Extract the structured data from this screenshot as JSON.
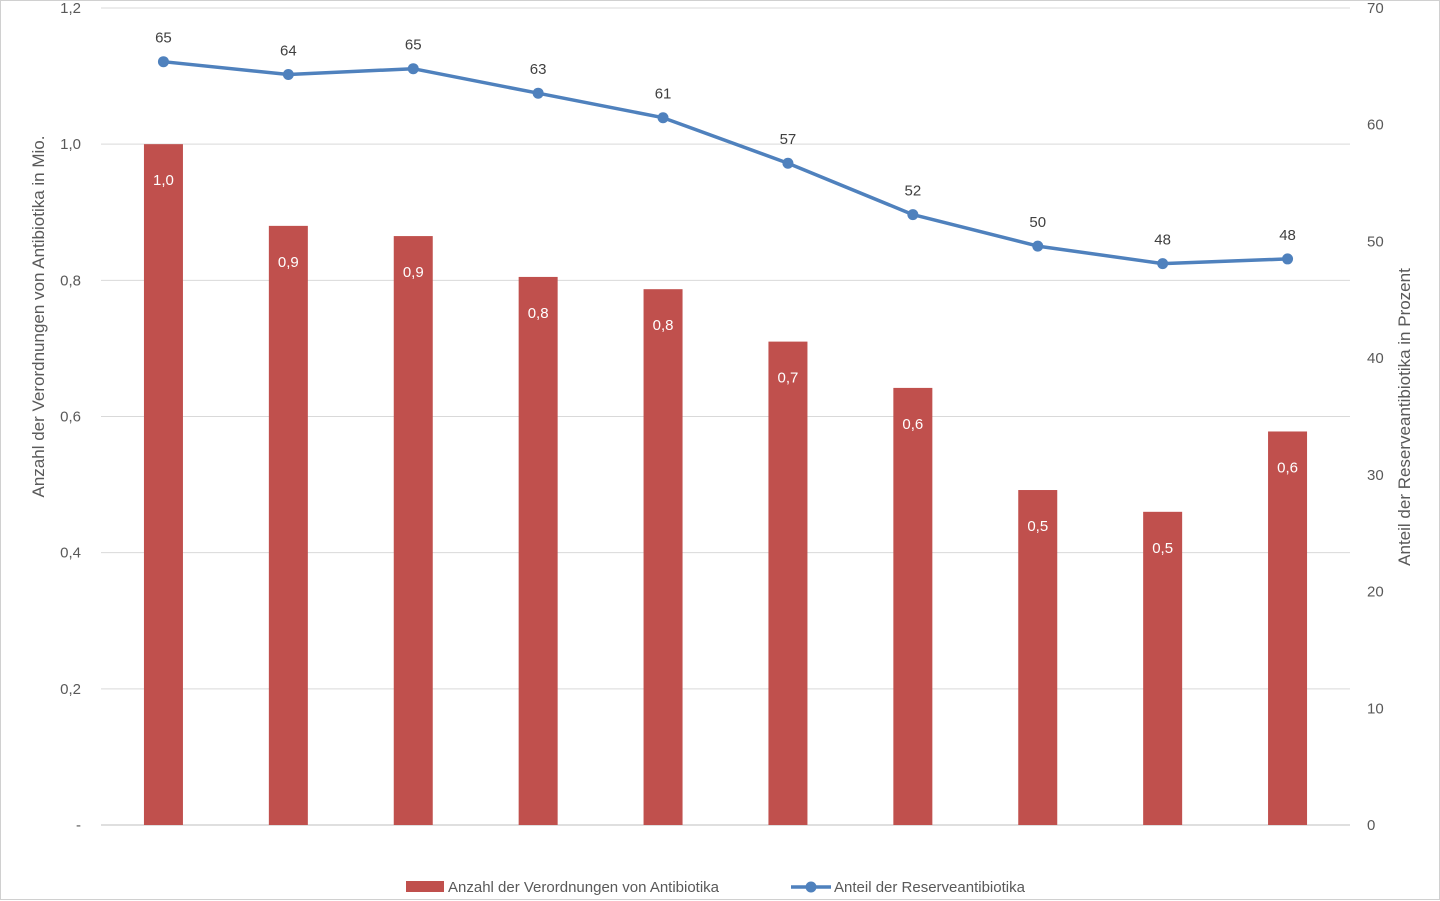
{
  "chart_data": {
    "type": "bar",
    "categories": [
      "",
      "",
      "",
      "",
      "",
      "",
      "",
      "",
      "",
      ""
    ],
    "series": [
      {
        "name": "Anzahl der Verordnungen von Antibiotika",
        "type": "bar",
        "axis": "left",
        "color": "#c0504d",
        "values": [
          1.0,
          0.88,
          0.865,
          0.805,
          0.787,
          0.71,
          0.642,
          0.492,
          0.46,
          0.578
        ],
        "labels": [
          "1,0",
          "0,9",
          "0,9",
          "0,8",
          "0,8",
          "0,7",
          "0,6",
          "0,5",
          "0,5",
          "0,6"
        ]
      },
      {
        "name": "Anteil der Reserveantibiotika",
        "type": "line",
        "axis": "right",
        "color": "#4f81bd",
        "values": [
          65.4,
          64.3,
          64.8,
          62.7,
          60.6,
          56.7,
          52.3,
          49.6,
          48.1,
          48.5
        ],
        "labels": [
          "65",
          "64",
          "65",
          "63",
          "61",
          "57",
          "52",
          "50",
          "48",
          "48"
        ]
      }
    ],
    "y_left": {
      "label": "Anzahl der Verordnungen von Antibiotika in Mio.",
      "ylim": [
        0,
        1.2
      ],
      "ticks": [
        0,
        0.2,
        0.4,
        0.6,
        0.8,
        1.0,
        1.2
      ],
      "tick_labels": [
        "-",
        "0,2",
        "0,4",
        "0,6",
        "0,8",
        "1,0",
        "1,2"
      ]
    },
    "y_right": {
      "label": "Anteil der Reserveantibiotika in Prozent",
      "ylim": [
        0,
        70
      ],
      "ticks": [
        0,
        10,
        20,
        30,
        40,
        50,
        60,
        70
      ],
      "tick_labels": [
        "0",
        "10",
        "20",
        "30",
        "40",
        "50",
        "60",
        "70"
      ]
    },
    "grid": true,
    "legend": "bottom"
  }
}
